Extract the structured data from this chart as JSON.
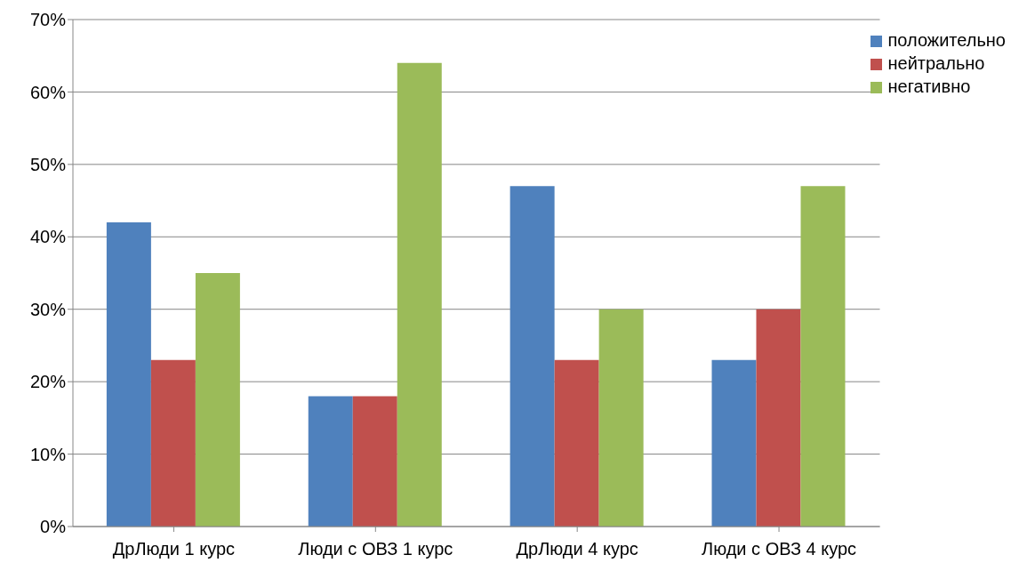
{
  "chart_data": {
    "type": "bar",
    "categories": [
      "ДрЛюди 1 курс",
      "Люди с ОВЗ 1 курс",
      "ДрЛюди 4 курс",
      "Люди с ОВЗ 4 курс"
    ],
    "series": [
      {
        "name": "положительно",
        "color": "#4f81bd",
        "values": [
          42,
          18,
          47,
          23
        ]
      },
      {
        "name": "нейтрально",
        "color": "#c0504d",
        "values": [
          23,
          18,
          23,
          30
        ]
      },
      {
        "name": "негативно",
        "color": "#9bbb59",
        "values": [
          35,
          64,
          30,
          47
        ]
      }
    ],
    "ylim": [
      0,
      70
    ],
    "yticks": [
      {
        "value": 0,
        "label": "0%"
      },
      {
        "value": 10,
        "label": "10%"
      },
      {
        "value": 20,
        "label": "20%"
      },
      {
        "value": 30,
        "label": "30%"
      },
      {
        "value": 40,
        "label": "40%"
      },
      {
        "value": 50,
        "label": "50%"
      },
      {
        "value": 60,
        "label": "60%"
      },
      {
        "value": 70,
        "label": "70%"
      }
    ],
    "grid": "y",
    "legend": "top right"
  }
}
